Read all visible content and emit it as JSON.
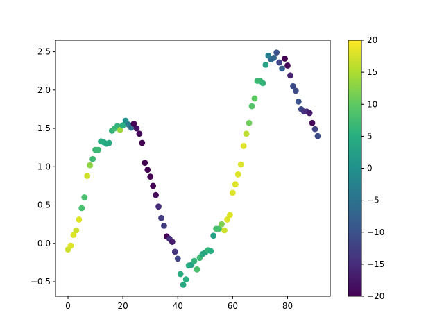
{
  "chart_data": {
    "type": "scatter",
    "title": "",
    "xlabel": "",
    "ylabel": "",
    "xlim": [
      -4.55,
      95.55
    ],
    "ylim": [
      -0.69,
      2.65
    ],
    "x_ticks": [
      0,
      20,
      40,
      60,
      80
    ],
    "y_ticks": [
      -0.5,
      0.0,
      0.5,
      1.0,
      1.5,
      2.0,
      2.5
    ],
    "x_tick_labels": [
      "0",
      "20",
      "40",
      "60",
      "80"
    ],
    "y_tick_labels": [
      "−0.5",
      "0.0",
      "0.5",
      "1.0",
      "1.5",
      "2.0",
      "2.5"
    ],
    "colorbar": {
      "colormap": "viridis",
      "range": [
        -20,
        20
      ],
      "ticks": [
        20,
        15,
        10,
        5,
        0,
        -5,
        -10,
        -15,
        -20
      ],
      "tick_labels": [
        "20",
        "15",
        "10",
        "5",
        "0",
        "−5",
        "−10",
        "−15",
        "−20"
      ]
    },
    "x": [
      0,
      1,
      2,
      3,
      4,
      5,
      6,
      7,
      8,
      9,
      10,
      11,
      12,
      13,
      14,
      15,
      16,
      17,
      18,
      19,
      20,
      21,
      22,
      23,
      24,
      25,
      26,
      27,
      28,
      29,
      30,
      31,
      32,
      33,
      34,
      35,
      36,
      37,
      38,
      39,
      40,
      41,
      42,
      43,
      44,
      45,
      46,
      47,
      48,
      49,
      50,
      51,
      52,
      53,
      54,
      55,
      56,
      57,
      58,
      59,
      60,
      61,
      62,
      63,
      64,
      65,
      66,
      67,
      68,
      69,
      70,
      71,
      72,
      73,
      74,
      75,
      76,
      77,
      78,
      79,
      80,
      81,
      82,
      83,
      84,
      85,
      86,
      87,
      88,
      89,
      90,
      91
    ],
    "y": [
      -0.08,
      -0.03,
      0.11,
      0.17,
      0.31,
      0.46,
      0.6,
      0.88,
      1.02,
      1.1,
      1.22,
      1.22,
      1.33,
      1.32,
      1.3,
      1.31,
      1.47,
      1.5,
      1.53,
      1.48,
      1.54,
      1.6,
      1.55,
      1.51,
      1.56,
      1.5,
      1.43,
      1.31,
      1.05,
      0.96,
      0.87,
      0.75,
      0.63,
      0.48,
      0.33,
      0.23,
      0.09,
      0.06,
      0.02,
      -0.11,
      -0.2,
      -0.4,
      -0.54,
      -0.47,
      -0.29,
      -0.28,
      -0.23,
      -0.34,
      -0.19,
      -0.14,
      -0.12,
      -0.09,
      -0.1,
      0.1,
      0.19,
      0.19,
      0.25,
      0.17,
      0.31,
      0.37,
      0.66,
      0.77,
      0.9,
      1.03,
      1.27,
      1.43,
      1.57,
      1.79,
      1.89,
      2.12,
      2.12,
      2.09,
      2.33,
      2.45,
      2.4,
      2.42,
      2.49,
      2.36,
      2.28,
      2.41,
      2.32,
      2.19,
      2.05,
      1.99,
      1.85,
      1.75,
      1.72,
      1.72,
      1.7,
      1.57,
      1.49,
      1.4
    ],
    "c": [
      17,
      18,
      18,
      17,
      18,
      8,
      8,
      17,
      13,
      7,
      7,
      7,
      5,
      5,
      4,
      4,
      6,
      7,
      6,
      14,
      5,
      0,
      -3,
      -5,
      -20,
      -18,
      -19,
      -20,
      -20,
      -20,
      -20,
      -20,
      -19,
      -15,
      -13,
      -13,
      -20,
      -15,
      -17,
      -14,
      -12,
      5,
      4,
      5,
      5,
      3,
      6,
      8,
      7,
      4,
      4,
      6,
      5,
      3,
      8,
      8,
      12,
      17,
      18,
      18,
      18,
      18,
      18,
      18,
      18,
      16,
      11,
      9,
      10,
      7,
      7,
      6,
      3,
      -3,
      -6,
      -7,
      -10,
      -12,
      -8,
      -20,
      -19,
      -16,
      -11,
      -11,
      -10,
      -11,
      -14,
      -15,
      -17,
      -19,
      -12,
      -11
    ]
  }
}
